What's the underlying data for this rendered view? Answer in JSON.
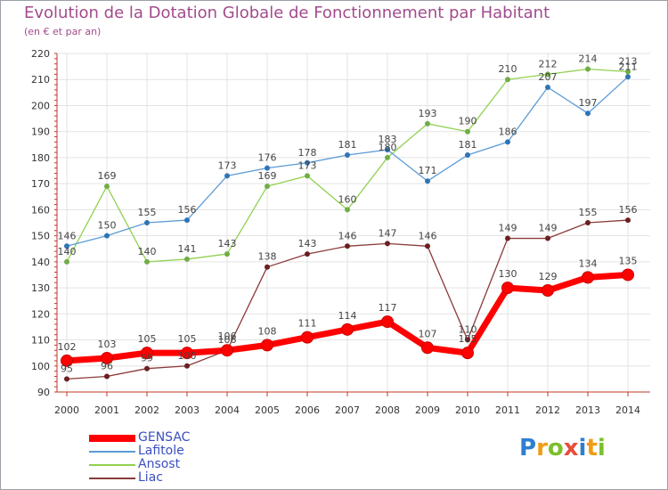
{
  "title": "Evolution de la Dotation Globale de Fonctionnement par Habitant",
  "subtitle": "(en € et par an)",
  "logo": {
    "letters": [
      "P",
      "r",
      "o",
      "x",
      "i",
      "t",
      "i"
    ],
    "colors": [
      "#2f7fd0",
      "#f39c12",
      "#7cbf2a",
      "#e74c3c",
      "#2f7fd0",
      "#f39c12",
      "#7cbf2a"
    ]
  },
  "chart_data": {
    "type": "line",
    "x": [
      "2000",
      "2001",
      "2002",
      "2003",
      "2004",
      "2005",
      "2006",
      "2007",
      "2008",
      "2009",
      "2010",
      "2011",
      "2012",
      "2013",
      "2014"
    ],
    "ylim": [
      90,
      220
    ],
    "yticks": [
      "90",
      "100",
      "110",
      "120",
      "130",
      "140",
      "150",
      "160",
      "170",
      "180",
      "190",
      "200",
      "210",
      "220"
    ],
    "grid": true,
    "legend_position": "bottom-left",
    "series": [
      {
        "name": "GENSAC",
        "color": "#ff0000",
        "marker_color": "#ff0000",
        "emphasis": true,
        "values": [
          102,
          103,
          105,
          105,
          106,
          108,
          111,
          114,
          117,
          107,
          105,
          130,
          129,
          134,
          135
        ],
        "labels": [
          "102",
          "103",
          "105",
          "105",
          "106",
          "108",
          "111",
          "114",
          "117",
          "107",
          "105",
          "130",
          "129",
          "134",
          "135"
        ]
      },
      {
        "name": "Lafitole",
        "color": "#5b9bd5",
        "marker_color": "#2e75b6",
        "values": [
          146,
          150,
          155,
          156,
          173,
          176,
          178,
          181,
          183,
          171,
          181,
          186,
          207,
          197,
          211
        ],
        "labels": [
          "146",
          "150",
          "155",
          "156",
          "173",
          "176",
          "178",
          "181",
          "183",
          "171",
          "181",
          "186",
          "207",
          "197",
          "211"
        ]
      },
      {
        "name": "Ansost",
        "color": "#92d050",
        "marker_color": "#70ad47",
        "values": [
          140,
          169,
          140,
          141,
          143,
          169,
          173,
          160,
          180,
          193,
          190,
          210,
          212,
          214,
          213
        ],
        "labels": [
          "140",
          "169",
          "140",
          "141",
          "143",
          "169",
          "173",
          "160",
          "180",
          "193",
          "190",
          "210",
          "212",
          "214",
          "213"
        ]
      },
      {
        "name": "Liac",
        "color": "#8b3a3a",
        "marker_color": "#6b1f1f",
        "values": [
          95,
          96,
          99,
          100,
          106,
          138,
          143,
          146,
          147,
          146,
          110,
          149,
          149,
          155,
          156
        ],
        "labels": [
          "95",
          "96",
          "99",
          "100",
          "106",
          "138",
          "143",
          "146",
          "147",
          "146",
          "110",
          "149",
          "149",
          "155",
          "156"
        ]
      }
    ]
  }
}
